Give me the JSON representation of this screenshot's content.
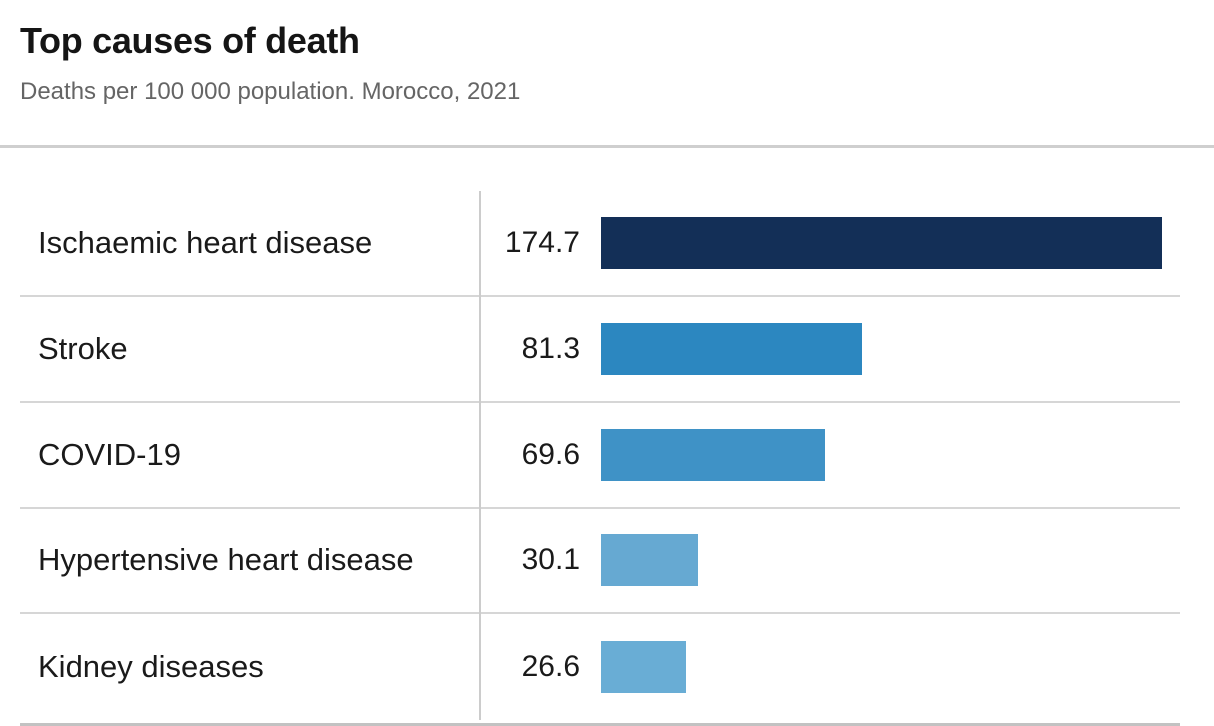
{
  "header": {
    "title": "Top causes of death",
    "subtitle": "Deaths per 100 000 population. Morocco, 2021"
  },
  "chart_data": {
    "type": "bar",
    "orientation": "horizontal",
    "title": "Top causes of death",
    "subtitle": "Deaths per 100 000 population. Morocco, 2021",
    "categories": [
      "Ischaemic heart disease",
      "Stroke",
      "COVID-19",
      "Hypertensive heart disease",
      "Kidney diseases"
    ],
    "values": [
      174.7,
      81.3,
      69.6,
      30.1,
      26.6
    ],
    "value_labels": [
      "174.7",
      "81.3",
      "69.6",
      "30.1",
      "26.6"
    ],
    "bar_colors": [
      "#132f57",
      "#2c87c0",
      "#3f92c6",
      "#66a9d2",
      "#69add5"
    ],
    "xlim": [
      0,
      174.7
    ],
    "grid": false,
    "legend": false
  },
  "style": {
    "separator_color": "#d6d6d6",
    "axis_line_color": "#cccccc",
    "title_color": "#151515",
    "subtitle_color": "#656565",
    "label_color": "#1a1a1a"
  }
}
